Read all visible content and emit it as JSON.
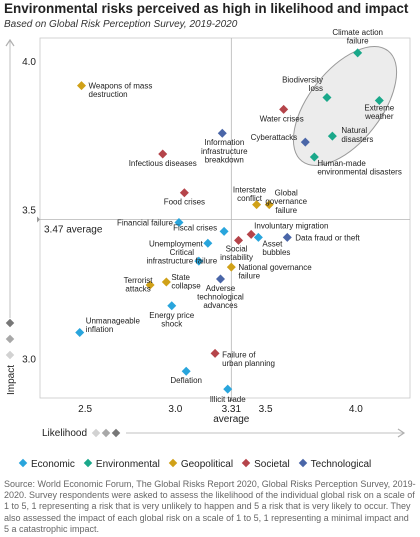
{
  "header": {
    "title": "Environmental risks perceived as high in likelihood and impact",
    "subtitle": "Based on Global Risk Perception Survey, 2019-2020"
  },
  "source": "Source: World Economic Forum, The Global Risks Report 2020, Global Risks Perception Survey, 2019-2020. Survey respondents were asked to assess the likelihood of the individual global risk on a scale of 1 to 5, 1 representing a risk that is very unlikely to happen and 5 a risk that is very likely to occur. They also assessed the impact of each global risk on a scale of 1 to 5, 1 representing a minimal impact and 5 a catastrophic impact.",
  "colors": {
    "Economic": "#29a5dc",
    "Environmental": "#1aa88a",
    "Geopolitical": "#d0a118",
    "Societal": "#b5444a",
    "Technological": "#4a66a8"
  },
  "chart_data": {
    "type": "scatter",
    "xlabel": "Likelihood",
    "ylabel": "Impact",
    "xlim": [
      2.25,
      4.3
    ],
    "ylim": [
      2.87,
      4.08
    ],
    "xticks": [
      {
        "value": 2.5,
        "label": "2.5"
      },
      {
        "value": 3.0,
        "label": "3.0"
      },
      {
        "value": 3.31,
        "label": "3.31"
      },
      {
        "value": 3.5,
        "label": "3.5"
      },
      {
        "value": 4.0,
        "label": "4.0"
      }
    ],
    "yticks": [
      {
        "value": 3.0,
        "label": "3.0"
      },
      {
        "value": 3.5,
        "label": "3.5"
      },
      {
        "value": 4.0,
        "label": "4.0"
      }
    ],
    "average": {
      "x": 3.31,
      "y": 3.47,
      "x_label": "average",
      "y_label": "3.47 average"
    },
    "grid": false,
    "legend_position": "bottom",
    "categories": [
      "Economic",
      "Environmental",
      "Geopolitical",
      "Societal",
      "Technological"
    ],
    "points": [
      {
        "label": "Climate action failure",
        "category": "Environmental",
        "x": 4.01,
        "y": 4.03
      },
      {
        "label": "Extreme weather",
        "category": "Environmental",
        "x": 4.13,
        "y": 3.87
      },
      {
        "label": "Biodiversity loss",
        "category": "Environmental",
        "x": 3.84,
        "y": 3.88
      },
      {
        "label": "Natural disasters",
        "category": "Environmental",
        "x": 3.87,
        "y": 3.75
      },
      {
        "label": "Human-made environmental disasters",
        "category": "Environmental",
        "x": 3.77,
        "y": 3.68
      },
      {
        "label": "Water crises",
        "category": "Societal",
        "x": 3.6,
        "y": 3.84
      },
      {
        "label": "Cyberattacks",
        "category": "Technological",
        "x": 3.72,
        "y": 3.73
      },
      {
        "label": "Weapons of mass destruction",
        "category": "Geopolitical",
        "x": 2.48,
        "y": 3.92
      },
      {
        "label": "Information infrastructure breakdown",
        "category": "Technological",
        "x": 3.26,
        "y": 3.76
      },
      {
        "label": "Infectious diseases",
        "category": "Societal",
        "x": 2.93,
        "y": 3.69
      },
      {
        "label": "Food crises",
        "category": "Societal",
        "x": 3.05,
        "y": 3.56
      },
      {
        "label": "Interstate conflict",
        "category": "Geopolitical",
        "x": 3.45,
        "y": 3.52
      },
      {
        "label": "Global governance failure",
        "category": "Geopolitical",
        "x": 3.52,
        "y": 3.52
      },
      {
        "label": "Financial failure",
        "category": "Economic",
        "x": 3.02,
        "y": 3.46
      },
      {
        "label": "Fiscal crises",
        "category": "Economic",
        "x": 3.27,
        "y": 3.43
      },
      {
        "label": "Unemployment",
        "category": "Economic",
        "x": 3.18,
        "y": 3.39
      },
      {
        "label": "Social instability",
        "category": "Societal",
        "x": 3.35,
        "y": 3.4
      },
      {
        "label": "Involuntary migration",
        "category": "Societal",
        "x": 3.42,
        "y": 3.42
      },
      {
        "label": "Asset bubbles",
        "category": "Economic",
        "x": 3.46,
        "y": 3.41
      },
      {
        "label": "Data fraud or theft",
        "category": "Technological",
        "x": 3.62,
        "y": 3.41
      },
      {
        "label": "Critical infrastructure failure",
        "category": "Economic",
        "x": 3.13,
        "y": 3.33
      },
      {
        "label": "National governance failure",
        "category": "Geopolitical",
        "x": 3.31,
        "y": 3.31
      },
      {
        "label": "Adverse technological advances",
        "category": "Technological",
        "x": 3.25,
        "y": 3.27
      },
      {
        "label": "State collapse",
        "category": "Geopolitical",
        "x": 2.95,
        "y": 3.26
      },
      {
        "label": "Terrorist attacks",
        "category": "Geopolitical",
        "x": 2.86,
        "y": 3.25
      },
      {
        "label": "Energy price shock",
        "category": "Economic",
        "x": 2.98,
        "y": 3.18
      },
      {
        "label": "Unmanageable inflation",
        "category": "Economic",
        "x": 2.47,
        "y": 3.09
      },
      {
        "label": "Failure of urban planning",
        "category": "Societal",
        "x": 3.22,
        "y": 3.02
      },
      {
        "label": "Deflation",
        "category": "Economic",
        "x": 3.06,
        "y": 2.96
      },
      {
        "label": "Illicit trade",
        "category": "Economic",
        "x": 3.29,
        "y": 2.9
      }
    ]
  }
}
